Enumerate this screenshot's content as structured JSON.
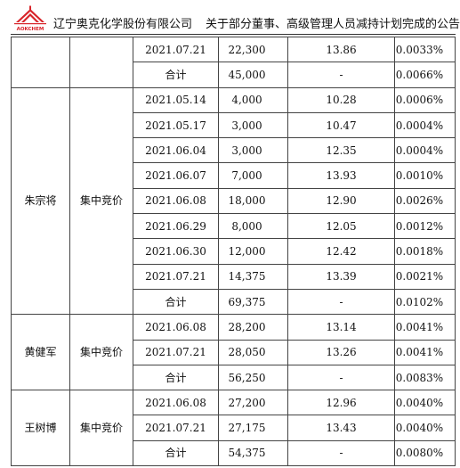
{
  "header": {
    "company": "辽宁奥克化学股份有限公司",
    "doc_title": "关于部分董事、高级管理人员减持计划完成的公告",
    "logo_text": "AOKCHEM"
  },
  "table": {
    "groups": [
      {
        "name": "",
        "method": "",
        "rows": [
          {
            "date": "2021.07.21",
            "qty": "22,300",
            "price": "13.86",
            "pct": "0.0033%"
          }
        ],
        "subtotal": {
          "label": "合计",
          "qty": "45,000",
          "price": "-",
          "pct": "0.0066%"
        }
      },
      {
        "name": "朱宗将",
        "method": "集中竞价",
        "rows": [
          {
            "date": "2021.05.14",
            "qty": "4,000",
            "price": "10.28",
            "pct": "0.0006%"
          },
          {
            "date": "2021.05.17",
            "qty": "3,000",
            "price": "10.47",
            "pct": "0.0004%"
          },
          {
            "date": "2021.06.04",
            "qty": "3,000",
            "price": "12.35",
            "pct": "0.0004%"
          },
          {
            "date": "2021.06.07",
            "qty": "7,000",
            "price": "13.93",
            "pct": "0.0010%"
          },
          {
            "date": "2021.06.08",
            "qty": "18,000",
            "price": "12.90",
            "pct": "0.0026%"
          },
          {
            "date": "2021.06.29",
            "qty": "8,000",
            "price": "12.05",
            "pct": "0.0012%"
          },
          {
            "date": "2021.06.30",
            "qty": "12,000",
            "price": "12.42",
            "pct": "0.0018%"
          },
          {
            "date": "2021.07.21",
            "qty": "14,375",
            "price": "13.39",
            "pct": "0.0021%"
          }
        ],
        "subtotal": {
          "label": "合计",
          "qty": "69,375",
          "price": "-",
          "pct": "0.0102%"
        }
      },
      {
        "name": "黄健军",
        "method": "集中竞价",
        "rows": [
          {
            "date": "2021.06.08",
            "qty": "28,200",
            "price": "13.14",
            "pct": "0.0041%"
          },
          {
            "date": "2021.07.21",
            "qty": "28,050",
            "price": "13.26",
            "pct": "0.0041%"
          }
        ],
        "subtotal": {
          "label": "合计",
          "qty": "56,250",
          "price": "-",
          "pct": "0.0083%"
        }
      },
      {
        "name": "王树博",
        "method": "集中竞价",
        "rows": [
          {
            "date": "2021.06.08",
            "qty": "27,200",
            "price": "12.96",
            "pct": "0.0040%"
          },
          {
            "date": "2021.07.21",
            "qty": "27,175",
            "price": "13.43",
            "pct": "0.0040%"
          }
        ],
        "subtotal": {
          "label": "合计",
          "qty": "54,375",
          "price": "-",
          "pct": "0.0080%"
        }
      }
    ]
  }
}
